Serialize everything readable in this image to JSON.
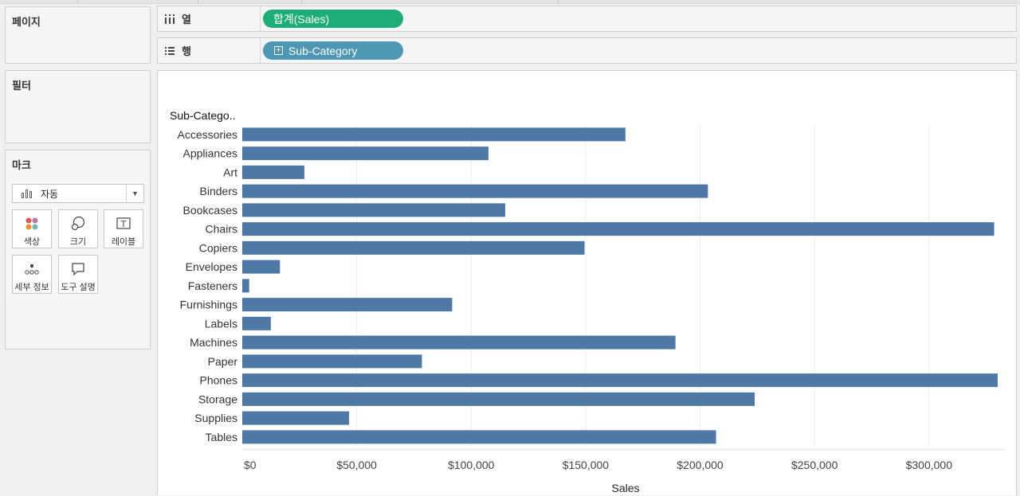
{
  "cards": {
    "pages_title": "페이지",
    "filters_title": "필터",
    "marks_title": "마크"
  },
  "marks": {
    "type_label": "자동",
    "buttons": [
      {
        "label": "색상",
        "icon": "color-dots-icon"
      },
      {
        "label": "크기",
        "icon": "size-circles-icon"
      },
      {
        "label": "레이블",
        "icon": "label-t-icon"
      },
      {
        "label": "세부 정보",
        "icon": "detail-dots-icon"
      },
      {
        "label": "도구 설명",
        "icon": "tooltip-bubble-icon"
      }
    ]
  },
  "shelves": {
    "columns_label": "열",
    "columns_pill": "합계(Sales)",
    "rows_label": "행",
    "rows_pill": "Sub-Category"
  },
  "colors": {
    "bar": "#4e79a7",
    "columns_pill": "#1cad78",
    "rows_pill": "#4d97b5"
  },
  "chart_data": {
    "type": "bar",
    "orientation": "horizontal",
    "row_header": "Sub-Catego..",
    "xlabel": "Sales",
    "ylabel": "",
    "xlim": [
      0,
      330000
    ],
    "xticks": [
      0,
      50000,
      100000,
      150000,
      200000,
      250000,
      300000
    ],
    "xtick_labels": [
      "$0",
      "$50,000",
      "$100,000",
      "$150,000",
      "$200,000",
      "$250,000",
      "$300,000"
    ],
    "grid": "vertical",
    "categories": [
      "Accessories",
      "Appliances",
      "Art",
      "Binders",
      "Bookcases",
      "Chairs",
      "Copiers",
      "Envelopes",
      "Fasteners",
      "Furnishings",
      "Labels",
      "Machines",
      "Paper",
      "Phones",
      "Storage",
      "Supplies",
      "Tables"
    ],
    "values": [
      167380,
      107532,
      27119,
      203413,
      114880,
      328449,
      149528,
      16476,
      3024,
      91705,
      12486,
      189239,
      78479,
      330007,
      223844,
      46674,
      206966
    ]
  }
}
